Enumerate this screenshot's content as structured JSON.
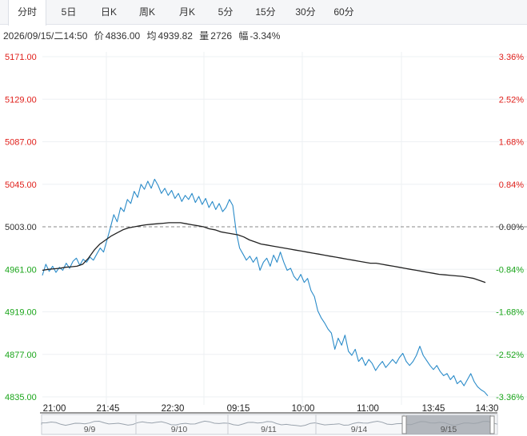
{
  "tabs": [
    {
      "label": "分时",
      "active": true
    },
    {
      "label": "5日"
    },
    {
      "label": "日K"
    },
    {
      "label": "周K"
    },
    {
      "label": "月K"
    },
    {
      "label": "5分"
    },
    {
      "label": "15分"
    },
    {
      "label": "30分"
    },
    {
      "label": "60分"
    }
  ],
  "info": {
    "datetime": "2026/09/15/二14:50",
    "price_label": "价",
    "price": "4836.00",
    "avg_label": "均",
    "avg": "4939.82",
    "vol_label": "量",
    "vol": "2726",
    "chg_label": "幅",
    "chg": "-3.34%"
  },
  "colors": {
    "up": "#e0201b",
    "down": "#1aa51a",
    "zero": "#333333",
    "price_line": "#2a8bc9",
    "avg_line": "#222222"
  },
  "chart_data": {
    "type": "line",
    "y_left_ticks": [
      "5171.00",
      "5129.00",
      "5087.00",
      "5045.00",
      "5003.00",
      "4961.00",
      "4919.00",
      "4877.00",
      "4835.00"
    ],
    "y_right_ticks": [
      "3.36%",
      "2.52%",
      "1.68%",
      "0.84%",
      "0.00%",
      "-0.84%",
      "-1.68%",
      "-2.52%",
      "-3.36%"
    ],
    "ylim": [
      4835,
      5171
    ],
    "base_price": 5003,
    "x_tick_labels": [
      "21:00",
      "21:45",
      "22:30",
      "09:15",
      "10:00",
      "11:00",
      "13:45",
      "14:30"
    ],
    "navigator_labels": [
      "9/9",
      "9/10",
      "9/11",
      "9/14",
      "9/15"
    ],
    "series": [
      {
        "key": "price",
        "values": [
          4955,
          4966,
          4959,
          4964,
          4958,
          4963,
          4960,
          4967,
          4962,
          4969,
          4972,
          4965,
          4971,
          4968,
          4973,
          4970,
          4976,
          4982,
          4978,
          4990,
          5002,
          5015,
          5008,
          5022,
          5018,
          5030,
          5026,
          5038,
          5032,
          5045,
          5040,
          5048,
          5041,
          5050,
          5044,
          5036,
          5041,
          5034,
          5039,
          5031,
          5036,
          5028,
          5034,
          5030,
          5036,
          5027,
          5033,
          5025,
          5031,
          5022,
          5028,
          5020,
          5026,
          5018,
          5022,
          5030,
          5024,
          4998,
          4982,
          4976,
          4970,
          4974,
          4968,
          4973,
          4960,
          4968,
          4972,
          4964,
          4975,
          4968,
          4978,
          4968,
          4960,
          4962,
          4954,
          4950,
          4956,
          4948,
          4952,
          4940,
          4934,
          4920,
          4913,
          4908,
          4902,
          4898,
          4882,
          4893,
          4886,
          4896,
          4880,
          4876,
          4882,
          4870,
          4874,
          4866,
          4872,
          4868,
          4861,
          4866,
          4870,
          4864,
          4868,
          4872,
          4868,
          4874,
          4878,
          4870,
          4866,
          4870,
          4876,
          4885,
          4876,
          4871,
          4866,
          4862,
          4866,
          4860,
          4856,
          4858,
          4852,
          4856,
          4848,
          4851,
          4846,
          4852,
          4858,
          4850,
          4845,
          4842,
          4840,
          4836
        ]
      },
      {
        "key": "avg",
        "values": [
          4960,
          4961,
          4961.5,
          4962,
          4963,
          4963.5,
          4964,
          4966,
          4972,
          4980,
          4986,
          4990,
          4994,
          4997,
          5000,
          5002,
          5003,
          5004,
          5005,
          5005.5,
          5006,
          5006.5,
          5007,
          5007,
          5007,
          5006,
          5005,
          5004,
          5003,
          5001,
          5000,
          4998,
          4997,
          4996,
          4995,
          4993,
          4990,
          4988,
          4986,
          4985,
          4984,
          4983,
          4982,
          4981,
          4980,
          4979,
          4978,
          4977,
          4976,
          4975,
          4974,
          4973,
          4972,
          4971,
          4970,
          4969,
          4968,
          4967,
          4967,
          4966,
          4965,
          4964,
          4963,
          4962,
          4961,
          4960,
          4959,
          4958,
          4957,
          4956,
          4955.5,
          4955,
          4954.5,
          4954,
          4953,
          4952,
          4950,
          4948
        ]
      }
    ]
  }
}
